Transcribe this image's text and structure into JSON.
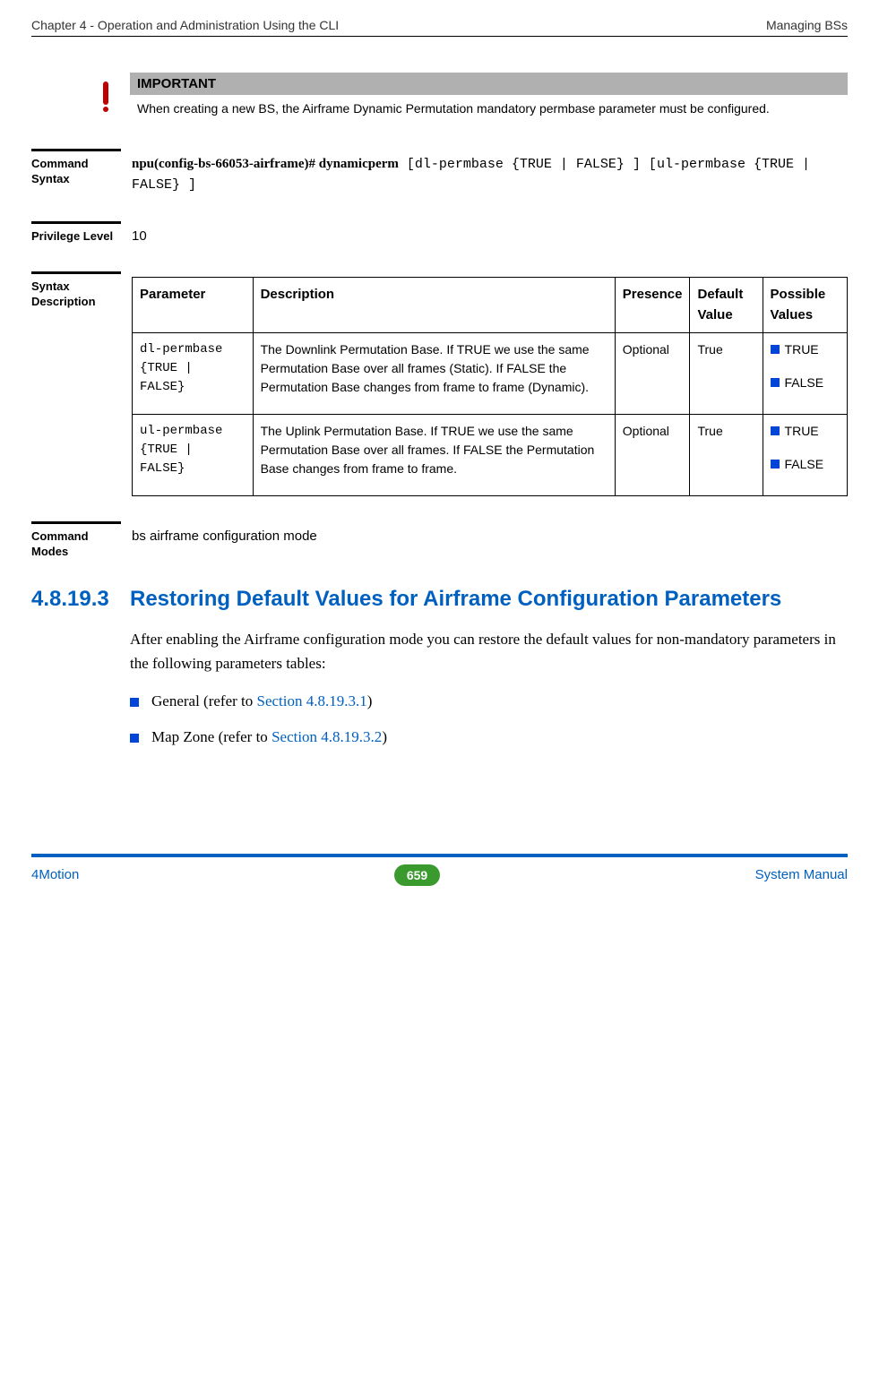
{
  "header": {
    "left": "Chapter 4 - Operation and Administration Using the CLI",
    "right": "Managing BSs"
  },
  "important": {
    "title": "IMPORTANT",
    "text": "When creating a new BS, the Airframe Dynamic Permutation mandatory permbase parameter must be configured."
  },
  "command_syntax": {
    "label": "Command Syntax",
    "strong": "npu(config-bs-66053-airframe)# dynamicperm",
    "rest": " [dl-permbase {TRUE | FALSE} ] [ul-permbase {TRUE | FALSE} ]"
  },
  "privilege": {
    "label": "Privilege Level",
    "value": "10"
  },
  "syntax_desc": {
    "label": "Syntax Description",
    "columns": [
      "Parameter",
      "Description",
      "Presence",
      "Default Value",
      "Possible Values"
    ],
    "rows": [
      {
        "param": "dl-permbase {TRUE | FALSE}",
        "desc": "The Downlink Permutation Base. If TRUE we use the same Permutation Base over all frames (Static). If FALSE the Permutation Base changes from frame to frame (Dynamic).",
        "presence": "Optional",
        "default": "True",
        "values": [
          "TRUE",
          "FALSE"
        ]
      },
      {
        "param": "ul-permbase {TRUE | FALSE}",
        "desc": "The Uplink Permutation Base. If TRUE we use the same Permutation Base over all frames. If FALSE the Permutation Base changes from frame to frame.",
        "presence": "Optional",
        "default": "True",
        "values": [
          "TRUE",
          "FALSE"
        ]
      }
    ]
  },
  "command_modes": {
    "label": "Command Modes",
    "value": "bs airframe configuration mode"
  },
  "subsection": {
    "number": "4.8.19.3",
    "title": "Restoring Default Values for Airframe Configuration Parameters",
    "intro": "After enabling the Airframe configuration mode you can restore the default values for non-mandatory parameters in the following parameters tables:",
    "bullets": [
      {
        "text": "General (refer to ",
        "ref": "Section 4.8.19.3.1",
        "after": ")"
      },
      {
        "text": "Map Zone (refer to ",
        "ref": "Section 4.8.19.3.2",
        "after": ")"
      }
    ]
  },
  "footer": {
    "left": "4Motion",
    "page": "659",
    "right": "System Manual"
  }
}
